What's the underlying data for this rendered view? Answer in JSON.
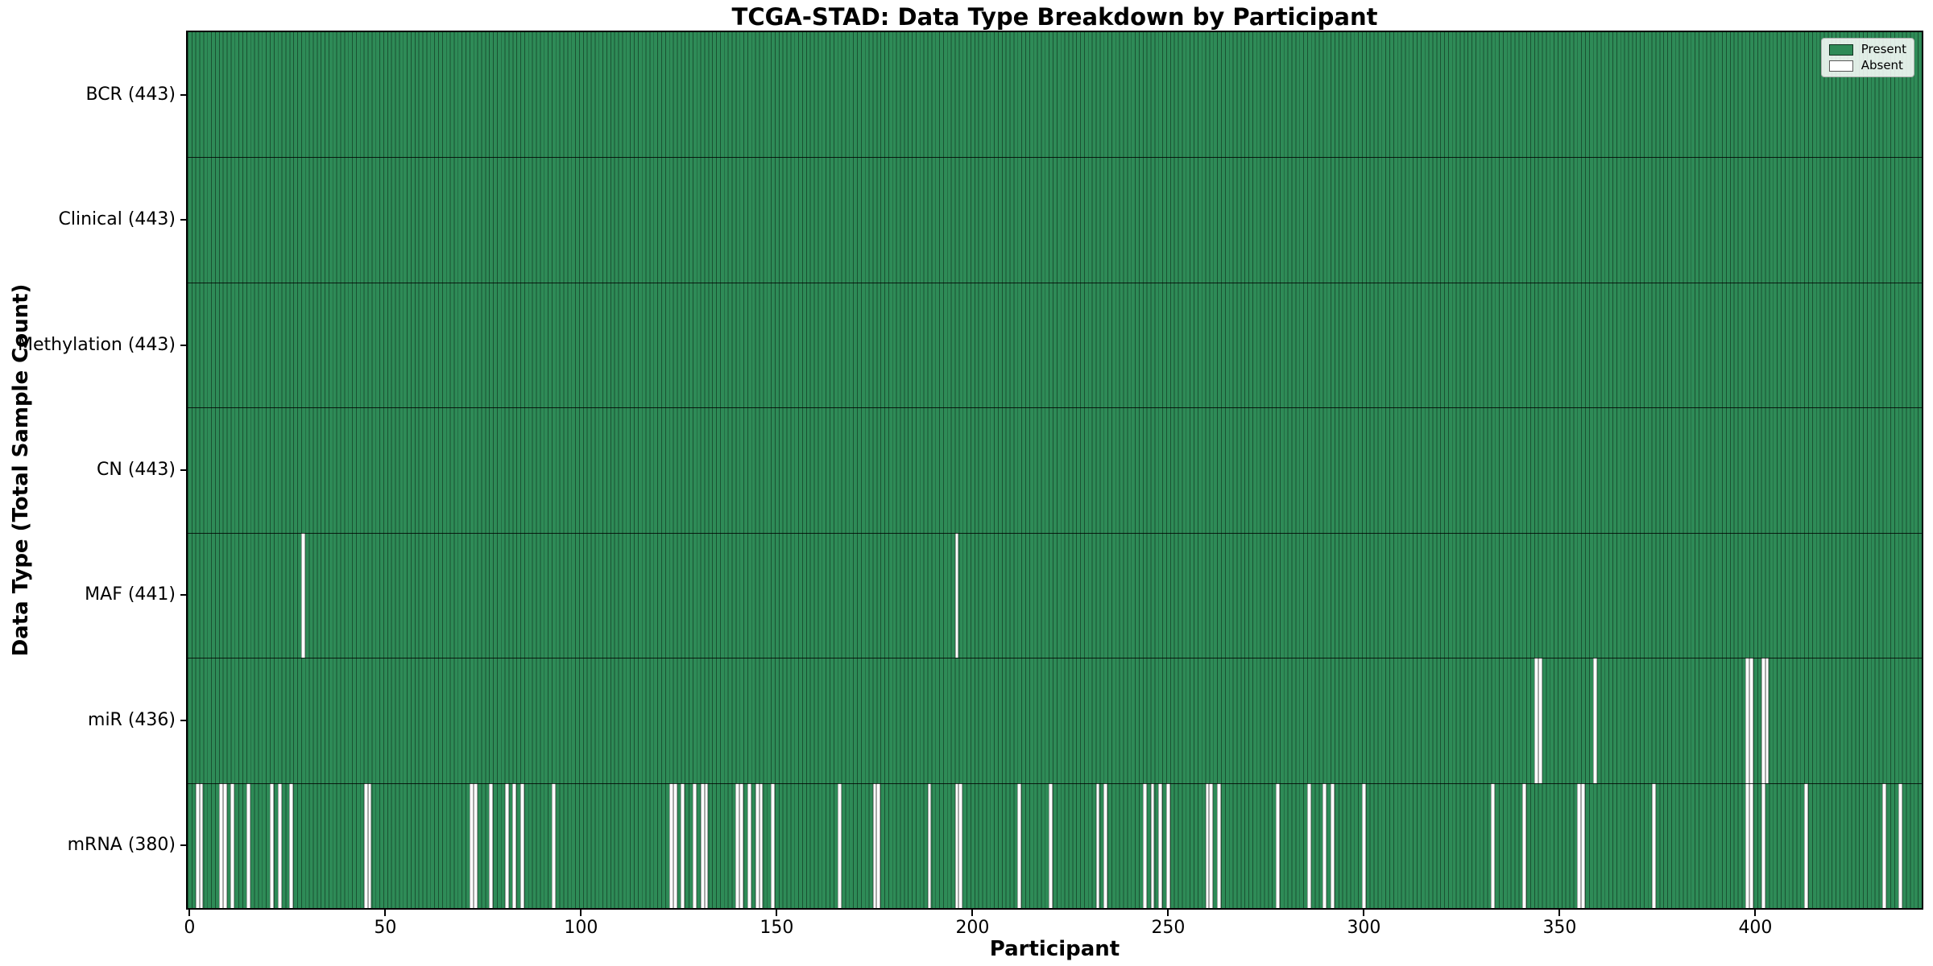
{
  "chart_data": {
    "type": "heatmap",
    "title": "TCGA-STAD: Data Type Breakdown by Participant",
    "xlabel": "Participant",
    "ylabel": "Data Type (Total Sample Count)",
    "n_participants": 443,
    "xlim": [
      -0.5,
      442.5
    ],
    "x_ticks": [
      0,
      50,
      100,
      150,
      200,
      250,
      300,
      350,
      400
    ],
    "grid": false,
    "legend_position": "upper right",
    "legend": [
      {
        "label": "Present",
        "color": "#2e8b57"
      },
      {
        "label": "Absent",
        "color": "#ffffff"
      }
    ],
    "colors": {
      "present": "#2e8b57",
      "absent": "#ffffff",
      "bar_edge": "rgba(10,35,20,0.55)",
      "row_separator": "#000000",
      "plot_border": "#000000",
      "legend_border": "#b0b0b0",
      "legend_background": "rgba(255,255,255,0.85)"
    },
    "rows": [
      {
        "name": "BCR",
        "label": "BCR (443)",
        "present_count": 443,
        "absent_participants": []
      },
      {
        "name": "Clinical",
        "label": "Clinical (443)",
        "present_count": 443,
        "absent_participants": []
      },
      {
        "name": "Methylation",
        "label": "Methylation (443)",
        "present_count": 443,
        "absent_participants": []
      },
      {
        "name": "CN",
        "label": "CN (443)",
        "present_count": 443,
        "absent_participants": []
      },
      {
        "name": "MAF",
        "label": "MAF (441)",
        "present_count": 441,
        "absent_participants": [
          29,
          196
        ]
      },
      {
        "name": "miR",
        "label": "miR (436)",
        "present_count": 436,
        "absent_participants": [
          344,
          345,
          359,
          398,
          399,
          402,
          403
        ]
      },
      {
        "name": "mRNA",
        "label": "mRNA (380)",
        "present_count": 380,
        "absent_participants": [
          2,
          3,
          8,
          9,
          11,
          15,
          21,
          23,
          26,
          45,
          46,
          72,
          73,
          77,
          81,
          83,
          85,
          93,
          123,
          124,
          126,
          129,
          131,
          132,
          140,
          141,
          143,
          145,
          146,
          149,
          166,
          175,
          176,
          189,
          196,
          197,
          212,
          220,
          232,
          234,
          244,
          246,
          248,
          250,
          260,
          261,
          263,
          278,
          286,
          290,
          292,
          300,
          333,
          341,
          355,
          356,
          374,
          398,
          399,
          402,
          413,
          433,
          437
        ]
      }
    ]
  }
}
